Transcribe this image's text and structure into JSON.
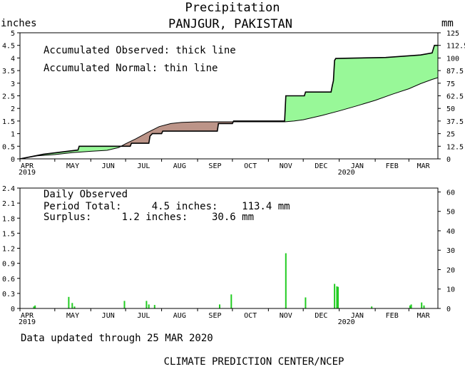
{
  "header": {
    "title": "Precipitation",
    "subtitle": "PANJGUR, PAKISTAN",
    "unit_left": "inches",
    "unit_right": "mm"
  },
  "top_panel": {
    "legend_line1": "Accumulated Observed: thick line",
    "legend_line2": "Accumulated Normal: thin line"
  },
  "bottom_panel": {
    "title": "Daily Observed",
    "period_total": "Period Total:     4.5 inches:    113.4 mm",
    "surplus": "Surplus:     1.2 inches:    30.6 mm"
  },
  "footer": {
    "updated": "Data updated through 25 MAR 2020",
    "credit": "CLIMATE PREDICTION CENTER/NCEP"
  },
  "colors": {
    "surplus_fill": "#98f898",
    "deficit_fill": "#bc9488",
    "bar_color": "#22cc22",
    "line_color": "#000000"
  },
  "chart_data": [
    {
      "type": "area",
      "name": "accumulated",
      "x_unit": "days since 1 Apr 2019",
      "x_range": [
        0,
        360
      ],
      "ylim": [
        0,
        5
      ],
      "ylim_right": [
        0,
        125
      ],
      "yticks": [
        "0",
        "0.5",
        "1",
        "1.5",
        "2",
        "2.5",
        "3",
        "3.5",
        "4",
        "4.5",
        "5"
      ],
      "yticks_right": [
        "0",
        "12.5",
        "25",
        "37.5",
        "50",
        "62.5",
        "75",
        "87.5",
        "100",
        "112.5",
        "125"
      ],
      "month_labels": [
        "APR",
        "MAY",
        "JUN",
        "JUL",
        "AUG",
        "SEP",
        "OCT",
        "NOV",
        "DEC",
        "JAN",
        "FEB",
        "MAR"
      ],
      "month_days": [
        0,
        30,
        61,
        91,
        122,
        153,
        183,
        214,
        244,
        275,
        306,
        335
      ],
      "year_labels": [
        {
          "text": "2019",
          "day": 0
        },
        {
          "text": "2020",
          "day": 275
        }
      ],
      "observed": [
        [
          0,
          0
        ],
        [
          20,
          0.18
        ],
        [
          50,
          0.35
        ],
        [
          51,
          0.5
        ],
        [
          95,
          0.5
        ],
        [
          96,
          0.62
        ],
        [
          111,
          0.62
        ],
        [
          112,
          0.9
        ],
        [
          114,
          1.0
        ],
        [
          122,
          1.0
        ],
        [
          123,
          1.1
        ],
        [
          170,
          1.1
        ],
        [
          171,
          1.4
        ],
        [
          183,
          1.4
        ],
        [
          184,
          1.5
        ],
        [
          228,
          1.5
        ],
        [
          229,
          2.5
        ],
        [
          245,
          2.5
        ],
        [
          246,
          2.65
        ],
        [
          268,
          2.65
        ],
        [
          269,
          2.9
        ],
        [
          270,
          3.1
        ],
        [
          271,
          3.9
        ],
        [
          272,
          3.98
        ],
        [
          315,
          4.02
        ],
        [
          345,
          4.12
        ],
        [
          355,
          4.2
        ],
        [
          357,
          4.5
        ],
        [
          360,
          4.5
        ]
      ],
      "normal": [
        [
          0,
          0
        ],
        [
          15,
          0.12
        ],
        [
          30,
          0.17
        ],
        [
          45,
          0.25
        ],
        [
          61,
          0.3
        ],
        [
          75,
          0.34
        ],
        [
          85,
          0.45
        ],
        [
          91,
          0.6
        ],
        [
          100,
          0.8
        ],
        [
          110,
          1.05
        ],
        [
          120,
          1.28
        ],
        [
          130,
          1.4
        ],
        [
          140,
          1.45
        ],
        [
          153,
          1.47
        ],
        [
          183,
          1.47
        ],
        [
          214,
          1.47
        ],
        [
          228,
          1.47
        ],
        [
          236,
          1.5
        ],
        [
          244,
          1.55
        ],
        [
          260,
          1.72
        ],
        [
          275,
          1.9
        ],
        [
          290,
          2.1
        ],
        [
          306,
          2.32
        ],
        [
          320,
          2.55
        ],
        [
          335,
          2.78
        ],
        [
          345,
          2.98
        ],
        [
          355,
          3.15
        ],
        [
          360,
          3.22
        ]
      ]
    },
    {
      "type": "bar",
      "name": "daily",
      "x_unit": "days since 1 Apr 2019",
      "x_range": [
        0,
        360
      ],
      "ylim": [
        0,
        2.4
      ],
      "ylim_right": [
        0,
        62
      ],
      "yticks": [
        "0",
        "0.3",
        "0.6",
        "0.9",
        "1.2",
        "1.5",
        "1.8",
        "2.1",
        "2.4"
      ],
      "yticks_right": [
        "0",
        "10",
        "20",
        "30",
        "40",
        "50",
        "60"
      ],
      "month_labels": [
        "APR",
        "MAY",
        "JUN",
        "JUL",
        "AUG",
        "SEP",
        "OCT",
        "NOV",
        "DEC",
        "JAN",
        "FEB",
        "MAR"
      ],
      "month_days": [
        0,
        30,
        61,
        91,
        122,
        153,
        183,
        214,
        244,
        275,
        306,
        335
      ],
      "year_labels": [
        {
          "text": "2019",
          "day": 0
        },
        {
          "text": "2020",
          "day": 275
        }
      ],
      "days": [
        12,
        13,
        42,
        45,
        47,
        90,
        109,
        111,
        116,
        172,
        182,
        229,
        246,
        271,
        273,
        274,
        303,
        336,
        337,
        346,
        348
      ],
      "values": [
        0.04,
        0.06,
        0.23,
        0.11,
        0.04,
        0.15,
        0.15,
        0.08,
        0.07,
        0.08,
        0.28,
        1.1,
        0.22,
        0.49,
        0.44,
        0.43,
        0.04,
        0.06,
        0.08,
        0.12,
        0.06
      ]
    }
  ]
}
